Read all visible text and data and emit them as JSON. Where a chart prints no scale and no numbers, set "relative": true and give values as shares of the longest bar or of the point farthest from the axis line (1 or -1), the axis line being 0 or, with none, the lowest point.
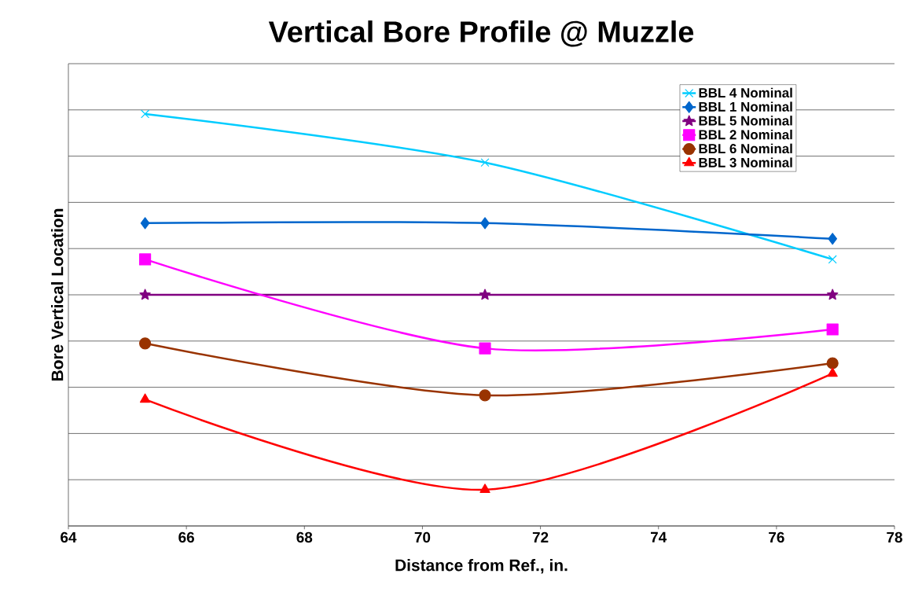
{
  "chart_data": {
    "type": "line",
    "title": "Vertical Bore Profile @ Muzzle",
    "xlabel": "Distance from Ref., in.",
    "ylabel": "Bore Vertical Location",
    "relative": true,
    "x": [
      65.3,
      71.06,
      76.95
    ],
    "xlim": [
      64,
      78
    ],
    "xticks": [
      64,
      66,
      68,
      70,
      72,
      74,
      76,
      78
    ],
    "grid": "y",
    "legend": "top right",
    "line_style": "solid",
    "series": [
      {
        "name": "BBL 4 Nominal",
        "color": "#00ccff",
        "marker": "cross",
        "values": [
          1,
          0.882,
          0.647
        ]
      },
      {
        "name": "BBL 1 Nominal",
        "color": "#0066cc",
        "marker": "diamond",
        "values": [
          0.735,
          0.735,
          0.697
        ]
      },
      {
        "name": "BBL 5 Nominal",
        "color": "#800080",
        "marker": "star",
        "values": [
          0.561,
          0.561,
          0.561
        ]
      },
      {
        "name": "BBL 2 Nominal",
        "color": "#ff00ff",
        "marker": "square",
        "values": [
          0.647,
          0.431,
          0.477
        ]
      },
      {
        "name": "BBL 6 Nominal",
        "color": "#993300",
        "marker": "circle",
        "values": [
          0.443,
          0.317,
          0.395
        ]
      },
      {
        "name": "BBL 3 Nominal",
        "color": "#ff0000",
        "marker": "triangle",
        "values": [
          0.307,
          0.088,
          0.37
        ]
      }
    ]
  }
}
